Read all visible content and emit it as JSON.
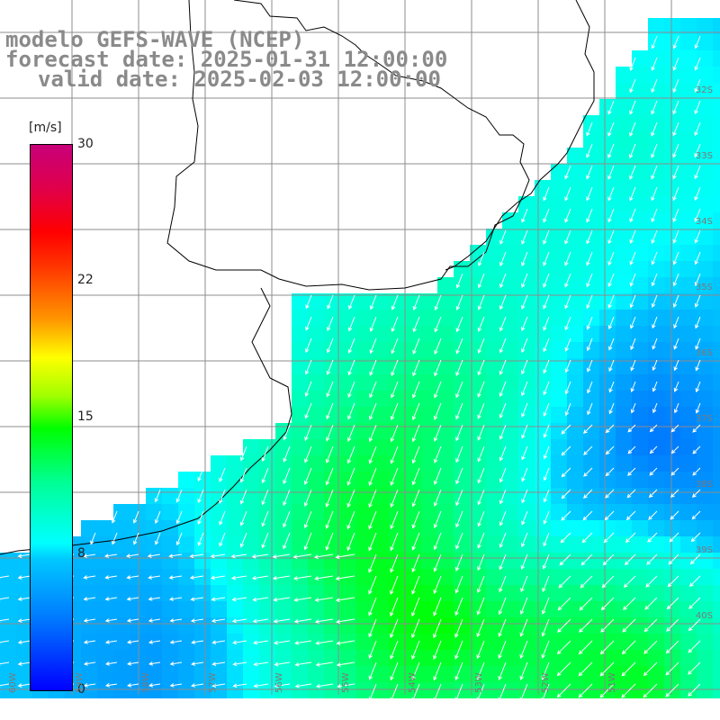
{
  "title": {
    "line1": "modelo GEFS-WAVE (NCEP)",
    "line2": "forecast date: 2025-01-31 12:00:00",
    "line3": "valid date: 2025-02-03 12:00:00"
  },
  "legend": {
    "unit": "[m/s]",
    "ticks": [
      "30",
      "22",
      "15",
      "8",
      "0"
    ],
    "tick_values": [
      30,
      22,
      15,
      8,
      0
    ],
    "colors": [
      "#0000ff",
      "#00ffff",
      "#00ff00",
      "#ffff00",
      "#ff0000",
      "#c8007a"
    ]
  },
  "map": {
    "lat_labels": [
      "32S",
      "33S",
      "34S",
      "35S",
      "36S",
      "37S",
      "38S",
      "39S",
      "40S"
    ],
    "lon_labels": [
      "60W",
      "59W",
      "58W",
      "57W",
      "56W",
      "55W",
      "54W",
      "53W",
      "52W",
      "51W"
    ],
    "land_color": "#ffffff",
    "grid_color": "#8c8c8c",
    "coast_color": "#000000",
    "arrow_color": "#ffffff"
  }
}
